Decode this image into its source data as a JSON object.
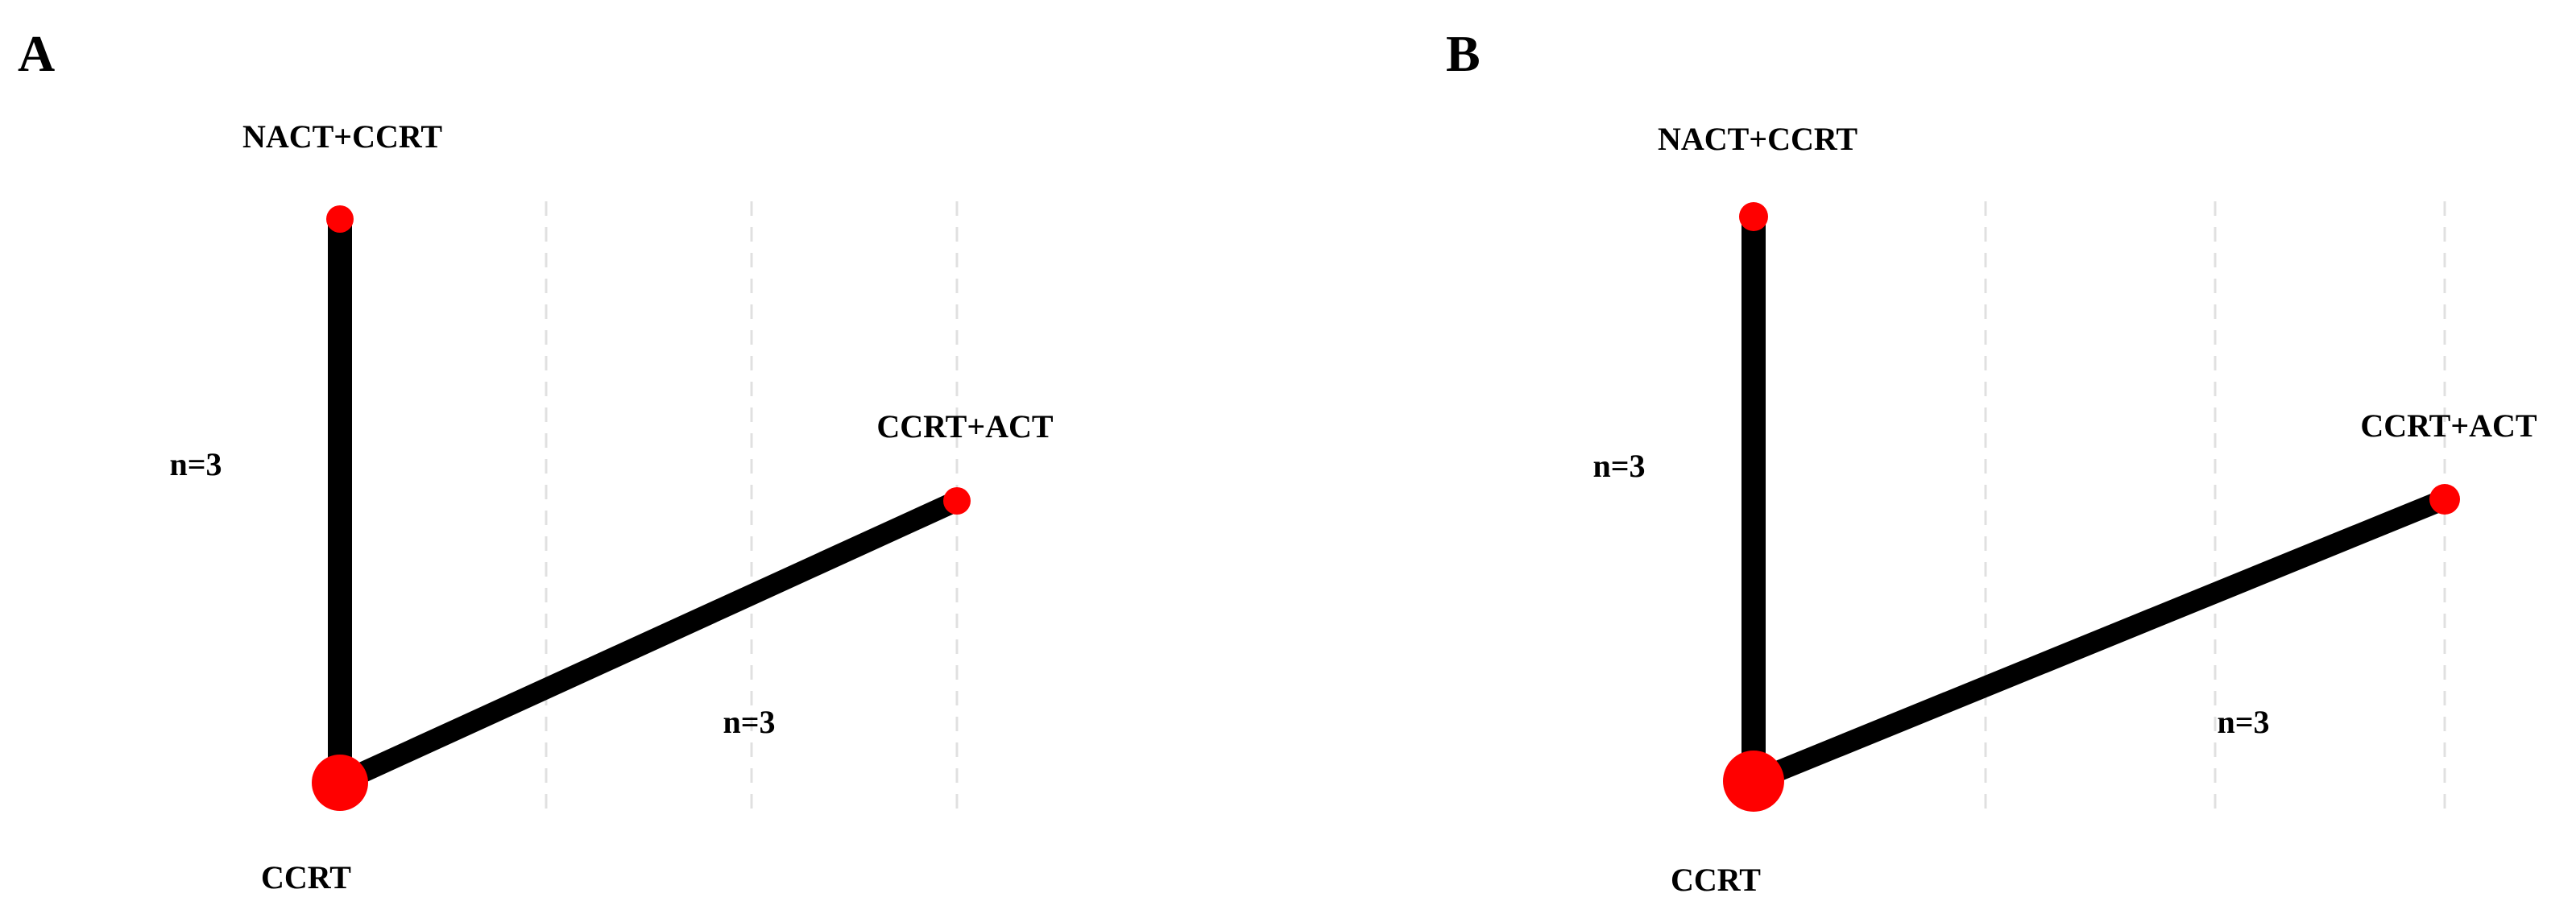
{
  "panels": [
    {
      "label": "A",
      "nodes": [
        {
          "id": "nact_ccrt",
          "label": "NACT+CCRT"
        },
        {
          "id": "ccrt_act",
          "label": "CCRT+ACT"
        },
        {
          "id": "ccrt",
          "label": "CCRT"
        }
      ],
      "edges": [
        {
          "from": "ccrt",
          "to": "nact_ccrt",
          "label": "n=3"
        },
        {
          "from": "ccrt",
          "to": "ccrt_act",
          "label": "n=3"
        }
      ]
    },
    {
      "label": "B",
      "nodes": [
        {
          "id": "nact_ccrt",
          "label": "NACT+CCRT"
        },
        {
          "id": "ccrt_act",
          "label": "CCRT+ACT"
        },
        {
          "id": "ccrt",
          "label": "CCRT"
        }
      ],
      "edges": [
        {
          "from": "ccrt",
          "to": "nact_ccrt",
          "label": "n=3"
        },
        {
          "from": "ccrt",
          "to": "ccrt_act",
          "label": "n=3"
        }
      ]
    }
  ],
  "colors": {
    "node": "#ff0000",
    "edge": "#000000",
    "guide": "#e0e0e0"
  }
}
